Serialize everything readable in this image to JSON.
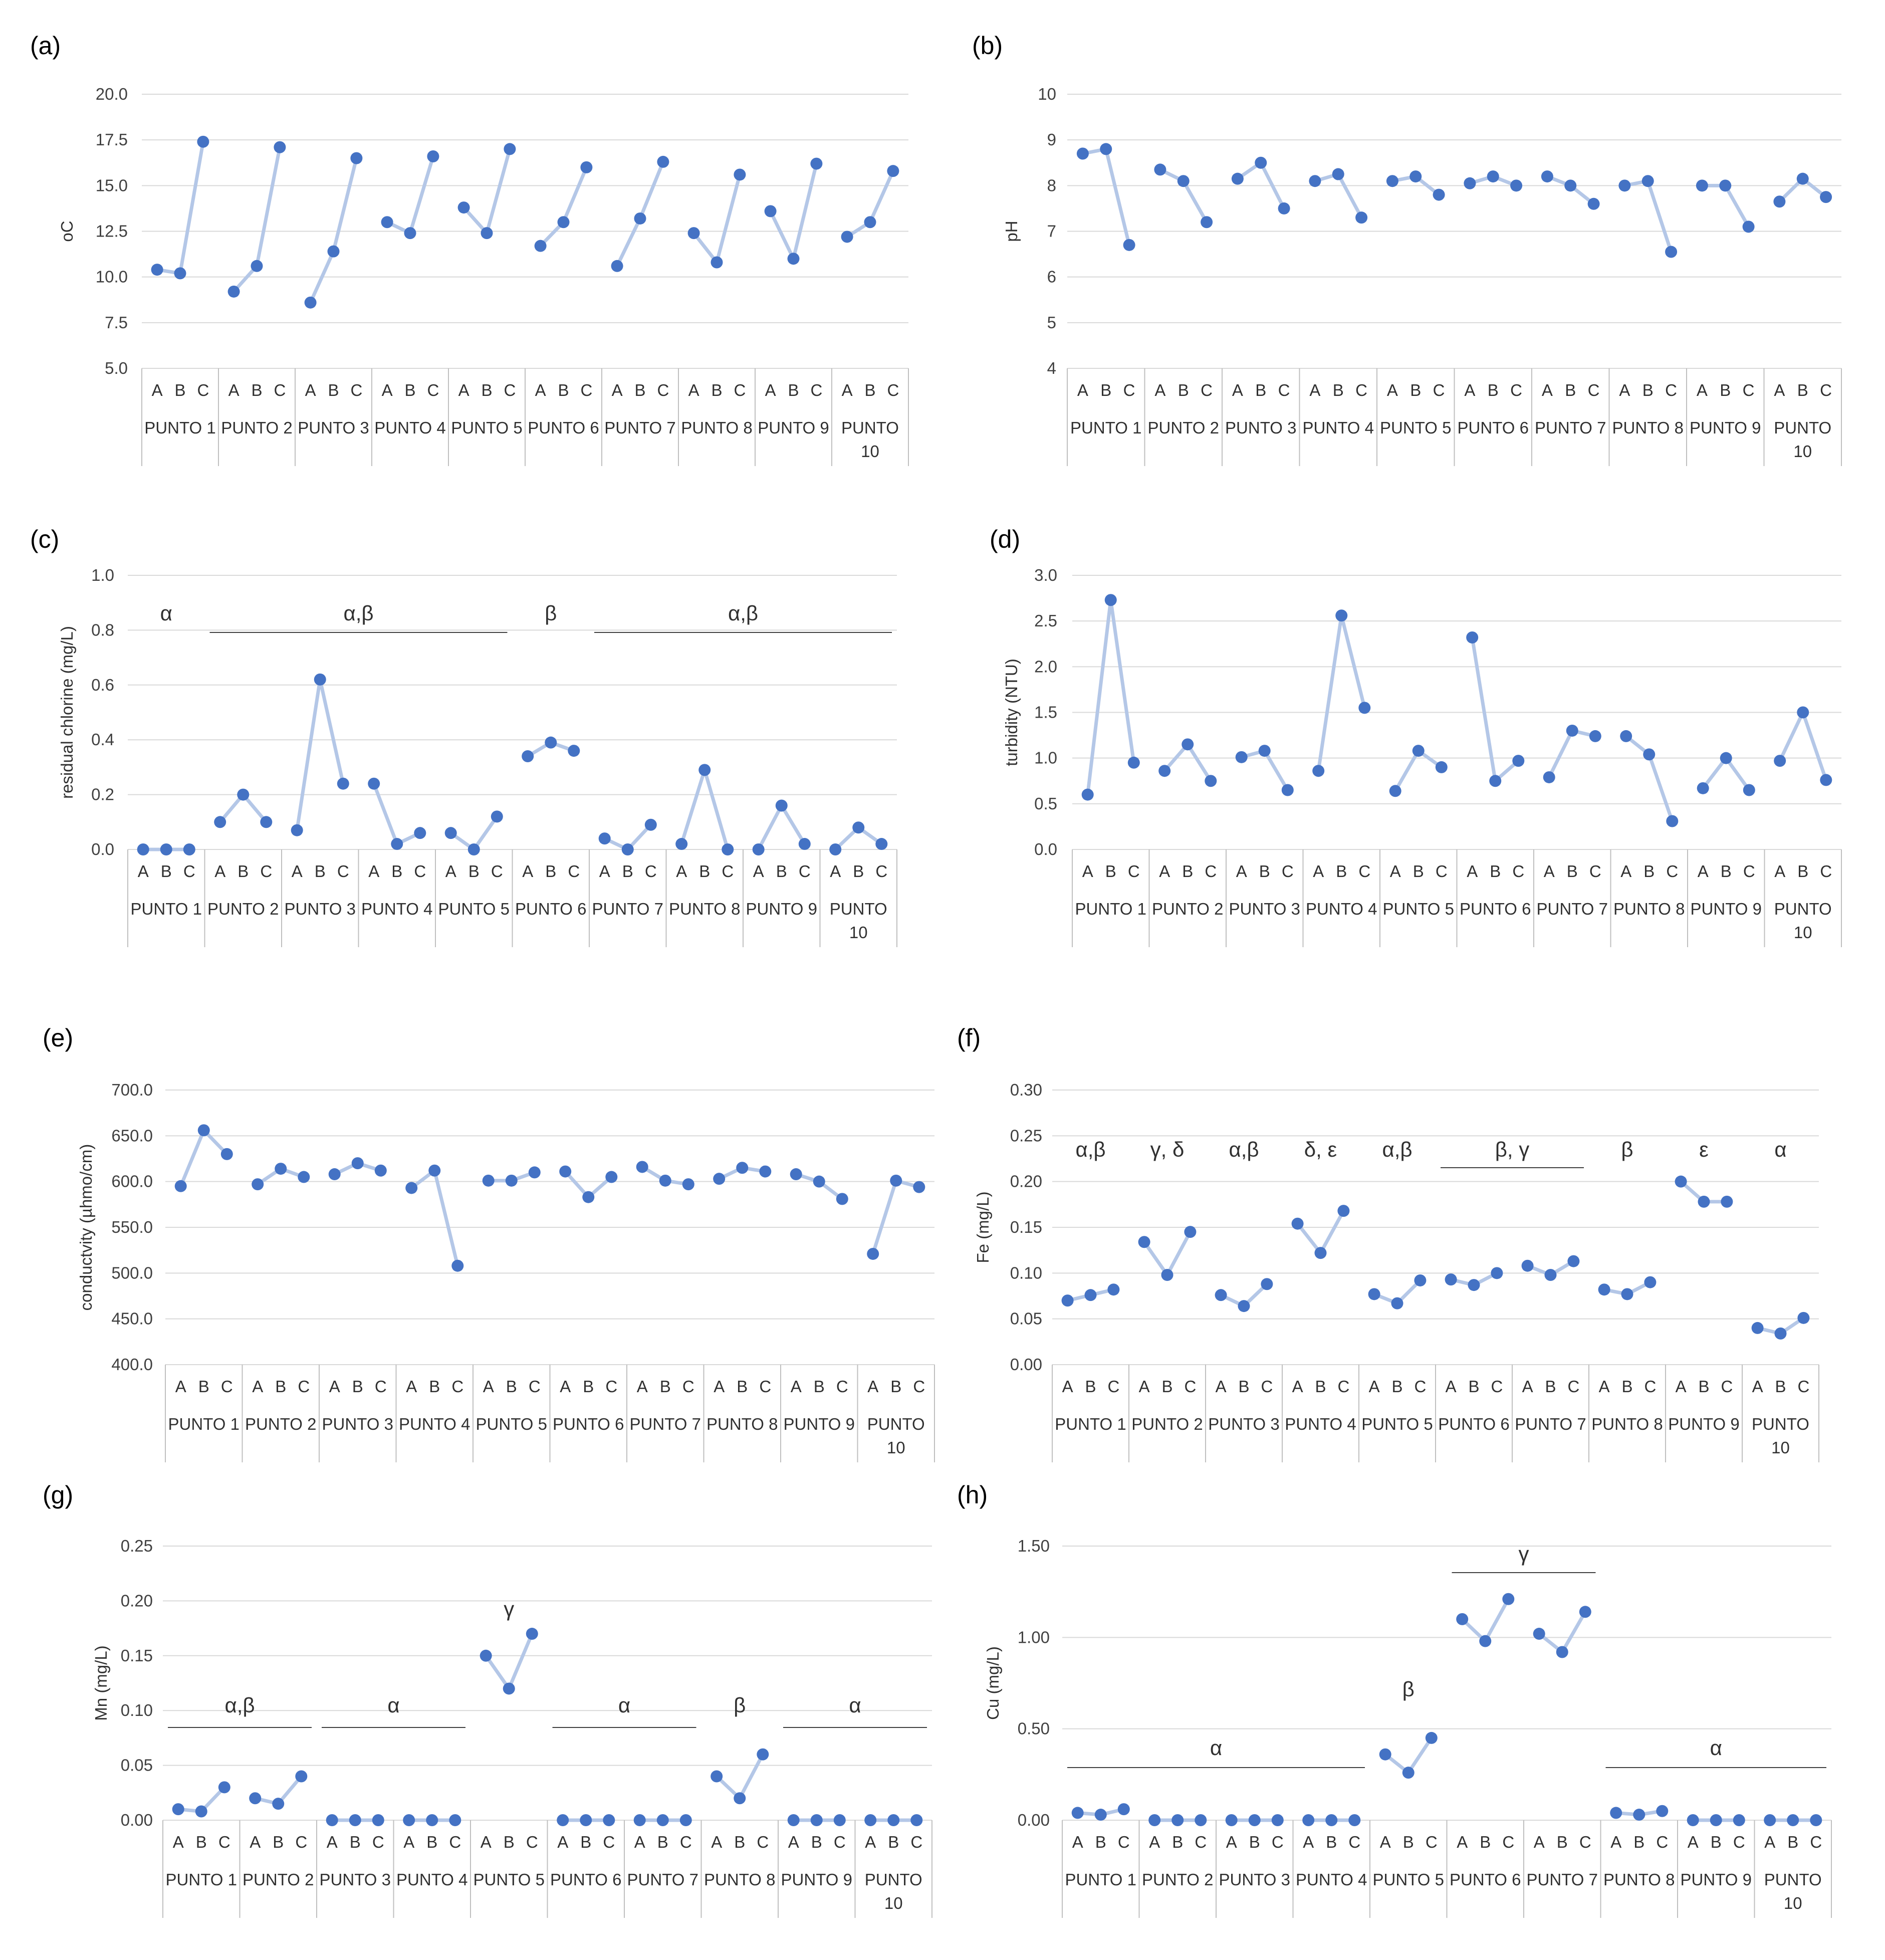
{
  "colors": {
    "marker": "#4472C4",
    "line": "#B4C7E7",
    "grid": "#D9D9D9",
    "axis": "#BFBFBF",
    "group_line": "#404040"
  },
  "figure": {
    "categories": [
      "A",
      "B",
      "C"
    ],
    "groups": [
      "PUNTO 1",
      "PUNTO 2",
      "PUNTO 3",
      "PUNTO 4",
      "PUNTO 5",
      "PUNTO 6",
      "PUNTO 7",
      "PUNTO 8",
      "PUNTO 9",
      "PUNTO\n10"
    ]
  },
  "chart_data": [
    {
      "type": "line",
      "label": "(a)",
      "ylabel": "oC",
      "ylim": [
        5.0,
        20.0
      ],
      "yticks": [
        "5.0",
        "7.5",
        "10.0",
        "12.5",
        "15.0",
        "17.5",
        "20.0"
      ],
      "series": [
        [
          10.4,
          10.2,
          17.4
        ],
        [
          9.2,
          10.6,
          17.1
        ],
        [
          8.6,
          11.4,
          16.5
        ],
        [
          13.0,
          12.4,
          16.6
        ],
        [
          13.8,
          12.4,
          17.0
        ],
        [
          11.7,
          13.0,
          16.0
        ],
        [
          10.6,
          13.2,
          16.3
        ],
        [
          12.4,
          10.8,
          15.6
        ],
        [
          13.6,
          11.0,
          16.2
        ],
        [
          12.2,
          13.0,
          15.8
        ]
      ],
      "annotations": []
    },
    {
      "type": "line",
      "label": "(b)",
      "ylabel": "pH",
      "ylim": [
        4,
        10
      ],
      "yticks": [
        "4",
        "5",
        "6",
        "7",
        "8",
        "9",
        "10"
      ],
      "series": [
        [
          8.7,
          8.8,
          6.7
        ],
        [
          8.35,
          8.1,
          7.2
        ],
        [
          8.15,
          8.5,
          7.5
        ],
        [
          8.1,
          8.25,
          7.3
        ],
        [
          8.1,
          8.2,
          7.8
        ],
        [
          8.05,
          8.2,
          8.0
        ],
        [
          8.2,
          8.0,
          7.6
        ],
        [
          8.0,
          8.1,
          6.55
        ],
        [
          8.0,
          8.0,
          7.1
        ],
        [
          7.65,
          8.15,
          7.75
        ]
      ],
      "annotations": []
    },
    {
      "type": "line",
      "label": "(c)",
      "ylabel": "residual chlorine (mg/L)",
      "ylim": [
        0.0,
        1.0
      ],
      "yticks": [
        "0.0",
        "0.2",
        "0.4",
        "0.6",
        "0.8",
        "1.0"
      ],
      "series": [
        [
          0.0,
          0.0,
          0.0
        ],
        [
          0.1,
          0.2,
          0.1
        ],
        [
          0.07,
          0.62,
          0.24
        ],
        [
          0.24,
          0.02,
          0.06
        ],
        [
          0.06,
          0.0,
          0.12
        ],
        [
          0.34,
          0.39,
          0.36
        ],
        [
          0.04,
          0.0,
          0.09
        ],
        [
          0.02,
          0.29,
          0.0
        ],
        [
          0.0,
          0.16,
          0.02
        ],
        [
          0.0,
          0.08,
          0.02
        ]
      ],
      "annotations": [
        {
          "text": "α",
          "from": 0,
          "to": 0,
          "line": false
        },
        {
          "text": "α,β",
          "from": 1,
          "to": 4,
          "line": true
        },
        {
          "text": "β",
          "from": 5,
          "to": 5,
          "line": false
        },
        {
          "text": "α,β",
          "from": 6,
          "to": 9,
          "line": true
        }
      ]
    },
    {
      "type": "line",
      "label": "(d)",
      "ylabel": "turbidity (NTU)",
      "ylim": [
        0.0,
        3.0
      ],
      "yticks": [
        "0.0",
        "0.5",
        "1.0",
        "1.5",
        "2.0",
        "2.5",
        "3.0"
      ],
      "series": [
        [
          0.6,
          2.73,
          0.95
        ],
        [
          0.86,
          1.15,
          0.75
        ],
        [
          1.01,
          1.08,
          0.65
        ],
        [
          0.86,
          2.56,
          1.55
        ],
        [
          0.64,
          1.08,
          0.9
        ],
        [
          2.32,
          0.75,
          0.97
        ],
        [
          0.79,
          1.3,
          1.24
        ],
        [
          1.24,
          1.04,
          0.31
        ],
        [
          0.67,
          1.0,
          0.65
        ],
        [
          0.97,
          1.5,
          0.76
        ]
      ],
      "annotations": []
    },
    {
      "type": "line",
      "label": "(e)",
      "ylabel": "conductvity (µhmo/cm)",
      "ylim": [
        400.0,
        700.0
      ],
      "yticks": [
        "400.0",
        "450.0",
        "500.0",
        "550.0",
        "600.0",
        "650.0",
        "700.0"
      ],
      "series": [
        [
          595,
          656,
          630
        ],
        [
          597,
          614,
          605
        ],
        [
          608,
          620,
          612
        ],
        [
          593,
          612,
          508
        ],
        [
          601,
          601,
          610
        ],
        [
          611,
          583,
          605
        ],
        [
          616,
          601,
          597
        ],
        [
          603,
          615,
          611
        ],
        [
          608,
          600,
          581
        ],
        [
          521,
          601,
          594
        ]
      ],
      "annotations": []
    },
    {
      "type": "line",
      "label": "(f)",
      "ylabel": "Fe (mg/L)",
      "ylim": [
        0.0,
        0.3
      ],
      "yticks": [
        "0.00",
        "0.05",
        "0.10",
        "0.15",
        "0.20",
        "0.25",
        "0.30"
      ],
      "series": [
        [
          0.07,
          0.076,
          0.082
        ],
        [
          0.134,
          0.098,
          0.145
        ],
        [
          0.076,
          0.064,
          0.088
        ],
        [
          0.154,
          0.122,
          0.168
        ],
        [
          0.077,
          0.067,
          0.092
        ],
        [
          0.093,
          0.087,
          0.1
        ],
        [
          0.108,
          0.098,
          0.113
        ],
        [
          0.082,
          0.077,
          0.09
        ],
        [
          0.2,
          0.178,
          0.178
        ],
        [
          0.04,
          0.034,
          0.051
        ]
      ],
      "annotations": [
        {
          "text": "α,β",
          "from": 0,
          "to": 0,
          "line": false
        },
        {
          "text": "γ, δ",
          "from": 1,
          "to": 1,
          "line": false
        },
        {
          "text": "α,β",
          "from": 2,
          "to": 2,
          "line": false
        },
        {
          "text": "δ, ε",
          "from": 3,
          "to": 3,
          "line": false
        },
        {
          "text": "α,β",
          "from": 4,
          "to": 4,
          "line": false
        },
        {
          "text": "β, γ",
          "from": 5,
          "to": 6,
          "line": true
        },
        {
          "text": "β",
          "from": 7,
          "to": 7,
          "line": false
        },
        {
          "text": "ε",
          "from": 8,
          "to": 8,
          "line": false
        },
        {
          "text": "α",
          "from": 9,
          "to": 9,
          "line": false
        }
      ]
    },
    {
      "type": "line",
      "label": "(g)",
      "ylabel": "Mn (mg/L)",
      "ylim": [
        0.0,
        0.25
      ],
      "yticks": [
        "0.00",
        "0.05",
        "0.10",
        "0.15",
        "0.20",
        "0.25"
      ],
      "series": [
        [
          0.01,
          0.008,
          0.03
        ],
        [
          0.02,
          0.015,
          0.04
        ],
        [
          0.0,
          0.0,
          0.0
        ],
        [
          0.0,
          0.0,
          0.0
        ],
        [
          0.15,
          0.12,
          0.17
        ],
        [
          0.0,
          0.0,
          0.0
        ],
        [
          0.0,
          0.0,
          0.0
        ],
        [
          0.04,
          0.02,
          0.06
        ],
        [
          0.0,
          0.0,
          0.0
        ],
        [
          0.0,
          0.0,
          0.0
        ]
      ],
      "annotations": [
        {
          "text": "α,β",
          "from": 0,
          "to": 1,
          "line": true
        },
        {
          "text": "α",
          "from": 2,
          "to": 3,
          "line": true
        },
        {
          "text": "γ",
          "from": 4,
          "to": 4,
          "line": false
        },
        {
          "text": "α",
          "from": 5,
          "to": 6,
          "line": true
        },
        {
          "text": "β",
          "from": 7,
          "to": 7,
          "line": false
        },
        {
          "text": "α",
          "from": 8,
          "to": 9,
          "line": true
        }
      ]
    },
    {
      "type": "line",
      "label": "(h)",
      "ylabel": "Cu (mg/L)",
      "ylim": [
        0.0,
        1.5
      ],
      "yticks": [
        "0.00",
        "0.50",
        "1.00",
        "1.50"
      ],
      "series": [
        [
          0.04,
          0.03,
          0.06
        ],
        [
          0.0,
          0.0,
          0.0
        ],
        [
          0.0,
          0.0,
          0.0
        ],
        [
          0.0,
          0.0,
          0.0
        ],
        [
          0.36,
          0.26,
          0.45
        ],
        [
          1.1,
          0.98,
          1.21
        ],
        [
          1.02,
          0.92,
          1.14
        ],
        [
          0.04,
          0.03,
          0.05
        ],
        [
          0.0,
          0.0,
          0.0
        ],
        [
          0.0,
          0.0,
          0.0
        ]
      ],
      "annotations": [
        {
          "text": "α",
          "from": 0,
          "to": 3,
          "line": true
        },
        {
          "text": "β",
          "from": 4,
          "to": 4,
          "line": false
        },
        {
          "text": "γ",
          "from": 5,
          "to": 6,
          "line": true
        },
        {
          "text": "α",
          "from": 7,
          "to": 9,
          "line": true
        }
      ]
    }
  ]
}
